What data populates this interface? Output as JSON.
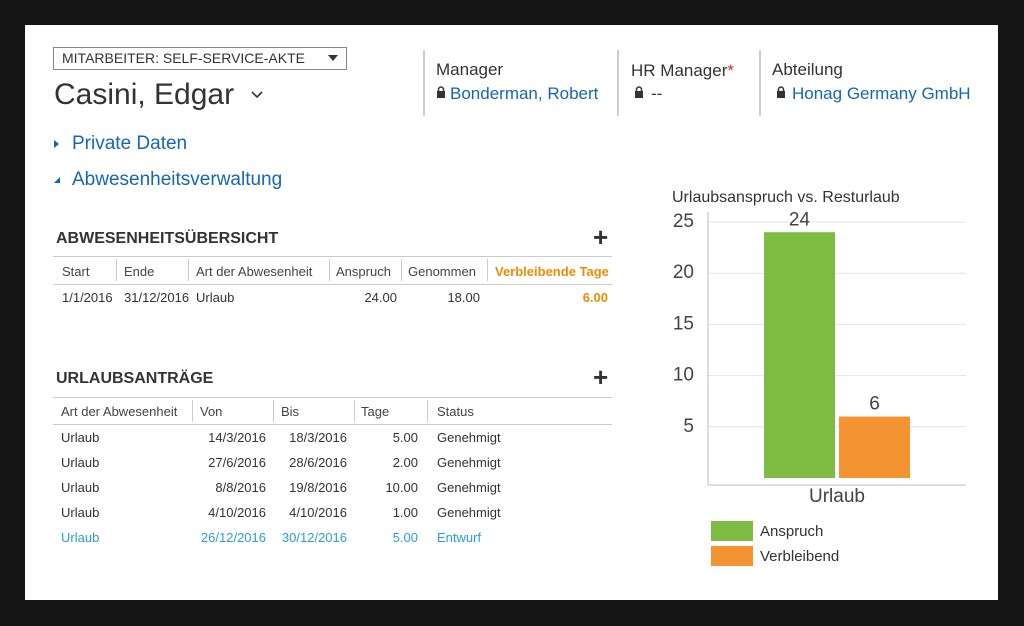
{
  "header": {
    "form_selector": "MITARBEITER: SELF-SERVICE-AKTE",
    "name": "Casini, Edgar",
    "fields": [
      {
        "label": "Manager",
        "value": "Bonderman, Robert"
      },
      {
        "label": "HR Manager",
        "required": "*",
        "value": "--"
      },
      {
        "label": "Abteilung",
        "value": "Honag Germany GmbH"
      }
    ]
  },
  "sections": [
    "Private Daten",
    "Abwesenheitsverwaltung"
  ],
  "absence_overview": {
    "title": "ABWESENHEITSÜBERSICHT",
    "columns": [
      "Start",
      "Ende",
      "Art der Abwesenheit",
      "Anspruch",
      "Genommen",
      "Verbleibende Tage"
    ],
    "highlight_column": 5,
    "rows": [
      [
        "1/1/2016",
        "31/12/2016",
        "Urlaub",
        "24.00",
        "18.00",
        "6.00"
      ]
    ]
  },
  "leave_requests": {
    "title": "URLAUBSANTRÄGE",
    "columns": [
      "Art der Abwesenheit",
      "Von",
      "Bis",
      "Tage",
      "Status"
    ],
    "highlight_row": 4,
    "rows": [
      [
        "Urlaub",
        "14/3/2016",
        "18/3/2016",
        "5.00",
        "Genehmigt"
      ],
      [
        "Urlaub",
        "27/6/2016",
        "28/6/2016",
        "2.00",
        "Genehmigt"
      ],
      [
        "Urlaub",
        "8/8/2016",
        "19/8/2016",
        "10.00",
        "Genehmigt"
      ],
      [
        "Urlaub",
        "4/10/2016",
        "4/10/2016",
        "1.00",
        "Genehmigt"
      ],
      [
        "Urlaub",
        "26/12/2016",
        "30/12/2016",
        "5.00",
        "Entwurf"
      ]
    ]
  },
  "chart_data": {
    "type": "bar",
    "title": "Urlaubsanspruch vs. Resturlaub",
    "categories": [
      "Urlaub"
    ],
    "series": [
      {
        "name": "Anspruch",
        "color": "#7dbb42",
        "values": [
          24
        ]
      },
      {
        "name": "Verbleibend",
        "color": "#f39332",
        "values": [
          6
        ]
      }
    ],
    "ylim": [
      0,
      25
    ],
    "yticks": [
      5,
      10,
      15,
      20,
      25
    ],
    "grid": true
  }
}
